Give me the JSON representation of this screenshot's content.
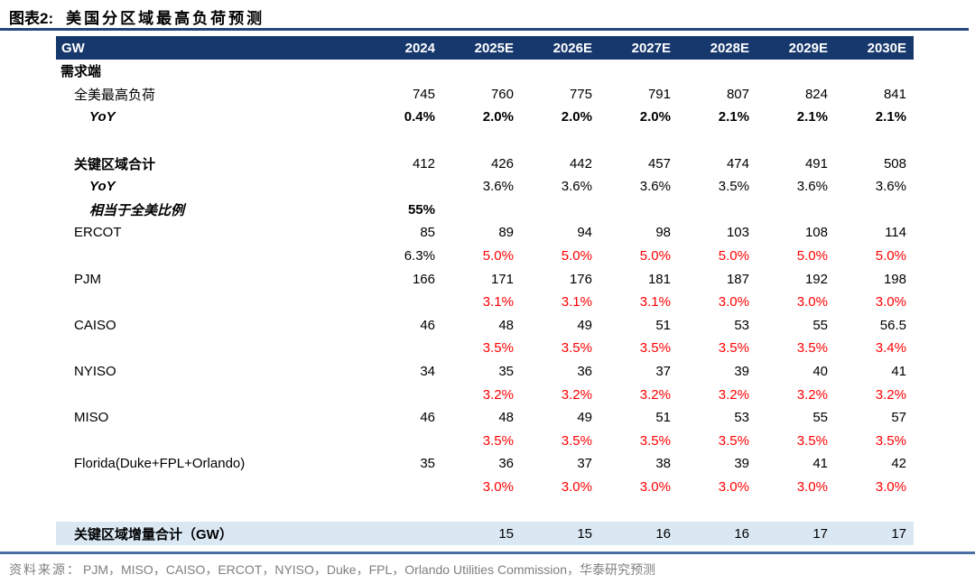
{
  "title": {
    "prefix": "图表2:",
    "text": "美国分区域最高负荷预测"
  },
  "table": {
    "corner_label": "GW",
    "columns": [
      "2024",
      "2025E",
      "2026E",
      "2027E",
      "2028E",
      "2029E",
      "2030E"
    ],
    "rows": [
      {
        "label": "需求端",
        "indent": 0,
        "label_style": "bold",
        "values": [
          "",
          "",
          "",
          "",
          "",
          "",
          ""
        ],
        "value_styles": [
          "",
          "",
          "",
          "",
          "",
          "",
          ""
        ]
      },
      {
        "label": "全美最高负荷",
        "indent": 1,
        "label_style": "plain",
        "values": [
          "745",
          "760",
          "775",
          "791",
          "807",
          "824",
          "841"
        ],
        "value_styles": [
          "",
          "",
          "",
          "",
          "",
          "",
          ""
        ]
      },
      {
        "label": "YoY",
        "indent": 2,
        "label_style": "bold-italic",
        "values": [
          "0.4%",
          "2.0%",
          "2.0%",
          "2.0%",
          "2.1%",
          "2.1%",
          "2.1%"
        ],
        "value_styles": [
          "bold",
          "bold",
          "bold",
          "bold",
          "bold",
          "bold",
          "bold"
        ]
      },
      {
        "label": "",
        "indent": 0,
        "label_style": "plain",
        "values": [
          "",
          "",
          "",
          "",
          "",
          "",
          ""
        ],
        "value_styles": [
          "",
          "",
          "",
          "",
          "",
          "",
          ""
        ]
      },
      {
        "label": "关键区域合计",
        "indent": 1,
        "label_style": "bold",
        "values": [
          "412",
          "426",
          "442",
          "457",
          "474",
          "491",
          "508"
        ],
        "value_styles": [
          "",
          "",
          "",
          "",
          "",
          "",
          ""
        ]
      },
      {
        "label": "YoY",
        "indent": 2,
        "label_style": "bold-italic",
        "values": [
          "",
          "3.6%",
          "3.6%",
          "3.6%",
          "3.5%",
          "3.6%",
          "3.6%"
        ],
        "value_styles": [
          "",
          "",
          "",
          "",
          "",
          "",
          ""
        ]
      },
      {
        "label": "相当于全美比例",
        "indent": 2,
        "label_style": "bold-italic",
        "values": [
          "55%",
          "",
          "",
          "",
          "",
          "",
          ""
        ],
        "value_styles": [
          "bold",
          "",
          "",
          "",
          "",
          "",
          ""
        ]
      },
      {
        "label": "ERCOT",
        "indent": 1,
        "label_style": "plain",
        "values": [
          "85",
          "89",
          "94",
          "98",
          "103",
          "108",
          "114"
        ],
        "value_styles": [
          "",
          "",
          "",
          "",
          "",
          "",
          ""
        ]
      },
      {
        "label": "",
        "indent": 1,
        "label_style": "plain",
        "values": [
          "6.3%",
          "5.0%",
          "5.0%",
          "5.0%",
          "5.0%",
          "5.0%",
          "5.0%"
        ],
        "value_styles": [
          "",
          "red",
          "red",
          "red",
          "red",
          "red",
          "red"
        ]
      },
      {
        "label": "PJM",
        "indent": 1,
        "label_style": "plain",
        "values": [
          "166",
          "171",
          "176",
          "181",
          "187",
          "192",
          "198"
        ],
        "value_styles": [
          "",
          "",
          "",
          "",
          "",
          "",
          ""
        ]
      },
      {
        "label": "",
        "indent": 1,
        "label_style": "plain",
        "values": [
          "",
          "3.1%",
          "3.1%",
          "3.1%",
          "3.0%",
          "3.0%",
          "3.0%"
        ],
        "value_styles": [
          "",
          "red",
          "red",
          "red",
          "red",
          "red",
          "red"
        ]
      },
      {
        "label": "CAISO",
        "indent": 1,
        "label_style": "plain",
        "values": [
          "46",
          "48",
          "49",
          "51",
          "53",
          "55",
          "56.5"
        ],
        "value_styles": [
          "",
          "",
          "",
          "",
          "",
          "",
          ""
        ]
      },
      {
        "label": "",
        "indent": 1,
        "label_style": "plain",
        "values": [
          "",
          "3.5%",
          "3.5%",
          "3.5%",
          "3.5%",
          "3.5%",
          "3.4%"
        ],
        "value_styles": [
          "",
          "red",
          "red",
          "red",
          "red",
          "red",
          "red"
        ]
      },
      {
        "label": "NYISO",
        "indent": 1,
        "label_style": "plain",
        "values": [
          "34",
          "35",
          "36",
          "37",
          "39",
          "40",
          "41"
        ],
        "value_styles": [
          "",
          "",
          "",
          "",
          "",
          "",
          ""
        ]
      },
      {
        "label": "",
        "indent": 1,
        "label_style": "plain",
        "values": [
          "",
          "3.2%",
          "3.2%",
          "3.2%",
          "3.2%",
          "3.2%",
          "3.2%"
        ],
        "value_styles": [
          "",
          "red",
          "red",
          "red",
          "red",
          "red",
          "red"
        ]
      },
      {
        "label": "MISO",
        "indent": 1,
        "label_style": "plain",
        "values": [
          "46",
          "48",
          "49",
          "51",
          "53",
          "55",
          "57"
        ],
        "value_styles": [
          "",
          "",
          "",
          "",
          "",
          "",
          ""
        ]
      },
      {
        "label": "",
        "indent": 1,
        "label_style": "plain",
        "values": [
          "",
          "3.5%",
          "3.5%",
          "3.5%",
          "3.5%",
          "3.5%",
          "3.5%"
        ],
        "value_styles": [
          "",
          "red",
          "red",
          "red",
          "red",
          "red",
          "red"
        ]
      },
      {
        "label": "Florida(Duke+FPL+Orlando)",
        "indent": 1,
        "label_style": "plain",
        "values": [
          "35",
          "36",
          "37",
          "38",
          "39",
          "41",
          "42"
        ],
        "value_styles": [
          "",
          "",
          "",
          "",
          "",
          "",
          ""
        ]
      },
      {
        "label": "",
        "indent": 1,
        "label_style": "plain",
        "values": [
          "",
          "3.0%",
          "3.0%",
          "3.0%",
          "3.0%",
          "3.0%",
          "3.0%"
        ],
        "value_styles": [
          "",
          "red",
          "red",
          "red",
          "red",
          "red",
          "red"
        ]
      },
      {
        "label": "",
        "indent": 0,
        "label_style": "plain",
        "values": [
          "",
          "",
          "",
          "",
          "",
          "",
          ""
        ],
        "value_styles": [
          "",
          "",
          "",
          "",
          "",
          "",
          ""
        ]
      },
      {
        "label": "关键区域增量合计（GW）",
        "indent": 1,
        "label_style": "bold",
        "highlight": true,
        "values": [
          "",
          "15",
          "15",
          "16",
          "16",
          "17",
          "17"
        ],
        "value_styles": [
          "",
          "",
          "",
          "",
          "",
          "",
          ""
        ]
      }
    ]
  },
  "source": {
    "label": "资料来源：",
    "text": "PJM，MISO，CAISO，ERCOT，NYISO，Duke，FPL，Orlando Utilities Commission，华泰研究预测"
  },
  "colors": {
    "header_bg": "#17386D",
    "header_text": "#FFFFFF",
    "highlight_row_bg": "#DAE8F4",
    "growth_red": "#FF0000",
    "title_rule_blue": "#24457C",
    "bottom_rule_blue": "#4A6FA3",
    "source_gray": "#7F7F7F"
  }
}
